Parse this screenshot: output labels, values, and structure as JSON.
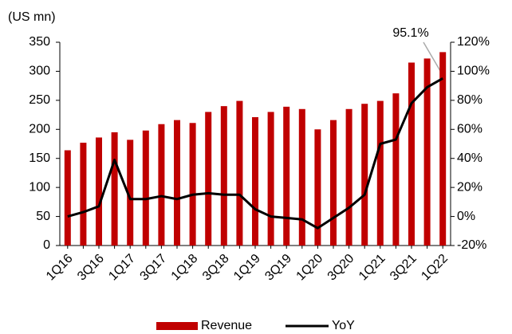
{
  "chart_data": {
    "type": "bar_line",
    "y_label": "(US mn)",
    "categories": [
      "1Q16",
      null,
      "3Q16",
      null,
      "1Q17",
      null,
      "3Q17",
      null,
      "1Q18",
      null,
      "3Q18",
      null,
      "1Q19",
      null,
      "3Q19",
      null,
      "1Q20",
      null,
      "3Q20",
      null,
      "1Q21",
      null,
      "3Q21",
      null,
      "1Q22"
    ],
    "series": [
      {
        "name": "Revenue",
        "color": "#c00000",
        "type": "bar",
        "values": [
          164,
          177,
          186,
          195,
          182,
          198,
          209,
          216,
          211,
          230,
          240,
          249,
          221,
          230,
          239,
          235,
          200,
          216,
          235,
          244,
          249,
          262,
          315,
          322,
          333
        ]
      },
      {
        "name": "YoY",
        "color": "#000000",
        "type": "line",
        "axis": "y2",
        "values": [
          0,
          3,
          7,
          39,
          12,
          12,
          14,
          12,
          15,
          16,
          15,
          15,
          5,
          0,
          -1,
          -2,
          -8,
          -1,
          6,
          15,
          50,
          53,
          78,
          89,
          95.1
        ]
      }
    ],
    "annotation": "95.1%",
    "ylim": [
      0,
      350
    ],
    "yticks": [
      0,
      50,
      100,
      150,
      200,
      250,
      300,
      350
    ],
    "y2lim": [
      -20,
      120
    ],
    "y2ticks": [
      {
        "value": -20,
        "label": "-20%"
      },
      {
        "value": 0,
        "label": "0%"
      },
      {
        "value": 20,
        "label": "20%"
      },
      {
        "value": 40,
        "label": "40%"
      },
      {
        "value": 60,
        "label": "60%"
      },
      {
        "value": 80,
        "label": "80%"
      },
      {
        "value": 100,
        "label": "100%"
      },
      {
        "value": 120,
        "label": "120%"
      }
    ],
    "legend": "bottom"
  }
}
